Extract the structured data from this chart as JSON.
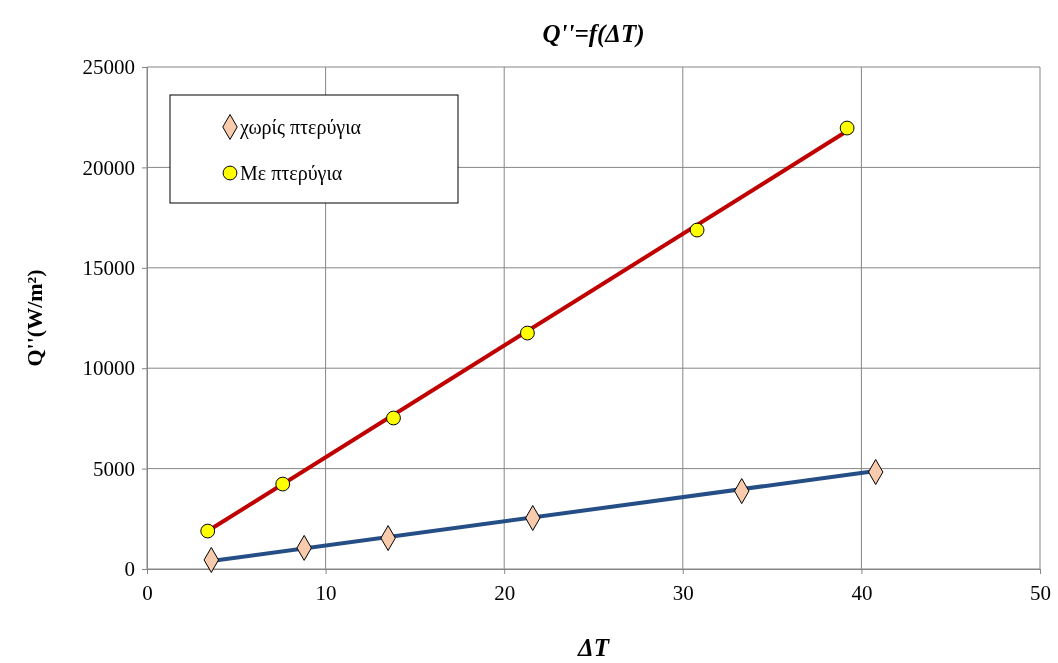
{
  "chart_data": {
    "type": "scatter",
    "title": "Q''=f(ΔT)",
    "xlabel": "ΔT",
    "ylabel": "Q''(W/m²)",
    "xlim": [
      0,
      50
    ],
    "xticks": [
      0,
      10,
      20,
      30,
      40,
      50
    ],
    "ylim": [
      0,
      25000
    ],
    "yticks": [
      0,
      5000,
      10000,
      15000,
      20000,
      25000
    ],
    "grid": true,
    "legend": "top left",
    "series": [
      {
        "type": "line",
        "color": "#c00000",
        "x": [
          3.4,
          39.2
        ],
        "values": [
          1890,
          21810
        ],
        "marker": "none"
      },
      {
        "type": "line",
        "color": "#254e86",
        "x": [
          3.6,
          40.8
        ],
        "values": [
          400,
          4880
        ],
        "marker": "none"
      },
      {
        "name": "χωρίς πτερύγια",
        "type": "scatter",
        "color": "#f8cbad",
        "marker": "diamond",
        "x": [
          3.6,
          8.8,
          13.5,
          21.6,
          33.3,
          40.8
        ],
        "values": [
          450,
          1050,
          1540,
          2540,
          3880,
          4830
        ]
      },
      {
        "name": "Με πτερύγια",
        "type": "scatter",
        "color": "#ffff00",
        "marker": "circle",
        "x": [
          3.4,
          7.6,
          13.8,
          21.3,
          30.8,
          39.2
        ],
        "values": [
          1890,
          4230,
          7520,
          11750,
          16880,
          21960
        ]
      }
    ]
  }
}
